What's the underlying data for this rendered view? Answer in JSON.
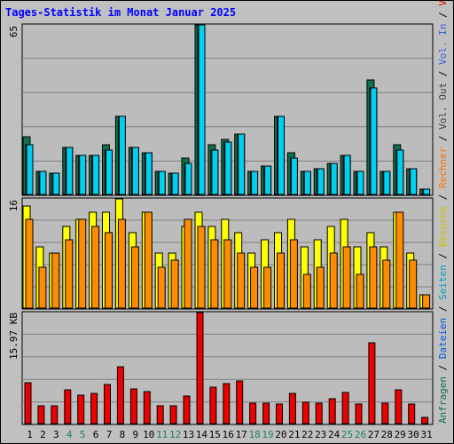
{
  "title": "Tages-Statistik im Monat Januar 2025",
  "colors": {
    "background": "#c0c0c0",
    "plot": "#bcbcbc",
    "grid": "#808080",
    "hits": "#107050",
    "files": "#00c0e0",
    "pages": "#00d0f0",
    "visits": "#ffff00",
    "sites": "#ff8c00",
    "kbytes": "#ee0000",
    "weekday_label": "#000000",
    "weekend_label": "#208060"
  },
  "right_legend": [
    {
      "text": "Anfragen",
      "color": "#107050"
    },
    {
      "text": " / ",
      "color": "#000000"
    },
    {
      "text": "Dateien",
      "color": "#0050e0"
    },
    {
      "text": " / ",
      "color": "#000000"
    },
    {
      "text": "Seiten",
      "color": "#00a0c0"
    },
    {
      "text": " / ",
      "color": "#000000"
    },
    {
      "text": "Besuche",
      "color": "#d0c000"
    },
    {
      "text": " / ",
      "color": "#000000"
    },
    {
      "text": "Rechner",
      "color": "#ff7000"
    },
    {
      "text": " / ",
      "color": "#000000"
    },
    {
      "text": "Vol. Out",
      "color": "#404040"
    },
    {
      "text": " / ",
      "color": "#000000"
    },
    {
      "text": "Vol. In",
      "color": "#3060e0"
    },
    {
      "text": " / ",
      "color": "#000000"
    },
    {
      "text": "Volumen",
      "color": "#ee0000"
    }
  ],
  "chart_data": [
    {
      "type": "bar",
      "panel": "top",
      "max_label": "65",
      "ylim": [
        0,
        65
      ],
      "grid": true,
      "categories": [
        "1",
        "2",
        "3",
        "4",
        "5",
        "6",
        "7",
        "8",
        "9",
        "10",
        "11",
        "12",
        "13",
        "14",
        "15",
        "16",
        "17",
        "18",
        "19",
        "20",
        "21",
        "22",
        "23",
        "24",
        "25",
        "26",
        "27",
        "28",
        "29",
        "30",
        "31"
      ],
      "weekend_days": [
        "4",
        "5",
        "11",
        "12",
        "18",
        "19",
        "25",
        "26"
      ],
      "series": [
        {
          "name": "Anfragen",
          "values": [
            22,
            9,
            8,
            18,
            15,
            15,
            19,
            30,
            18,
            16,
            9,
            8,
            14,
            65,
            19,
            21,
            23,
            9,
            11,
            30,
            16,
            9,
            10,
            12,
            15,
            9,
            44,
            9,
            19,
            10,
            2
          ]
        },
        {
          "name": "Dateien",
          "values": [
            19,
            9,
            8,
            18,
            15,
            15,
            17,
            30,
            18,
            16,
            9,
            8,
            12,
            65,
            17,
            20,
            23,
            9,
            11,
            30,
            14,
            9,
            10,
            12,
            15,
            9,
            41,
            9,
            17,
            10,
            2
          ]
        },
        {
          "name": "Seiten",
          "values": [
            19,
            9,
            8,
            18,
            15,
            15,
            17,
            30,
            18,
            16,
            9,
            8,
            12,
            65,
            17,
            20,
            23,
            9,
            11,
            30,
            14,
            9,
            10,
            12,
            15,
            9,
            41,
            9,
            17,
            10,
            2
          ]
        }
      ]
    },
    {
      "type": "bar",
      "panel": "middle",
      "max_label": "16",
      "ylim": [
        0,
        16
      ],
      "grid": true,
      "categories": [
        "1",
        "2",
        "3",
        "4",
        "5",
        "6",
        "7",
        "8",
        "9",
        "10",
        "11",
        "12",
        "13",
        "14",
        "15",
        "16",
        "17",
        "18",
        "19",
        "20",
        "21",
        "22",
        "23",
        "24",
        "25",
        "26",
        "27",
        "28",
        "29",
        "30",
        "31"
      ],
      "series": [
        {
          "name": "Besuche",
          "values": [
            15,
            9,
            8,
            12,
            13,
            14,
            14,
            16,
            11,
            14,
            8,
            8,
            12,
            14,
            12,
            13,
            11,
            8,
            10,
            11,
            13,
            9,
            10,
            12,
            13,
            9,
            11,
            9,
            14,
            8,
            2
          ]
        },
        {
          "name": "Rechner",
          "values": [
            13,
            6,
            8,
            10,
            13,
            12,
            11,
            13,
            9,
            14,
            6,
            7,
            13,
            12,
            10,
            10,
            8,
            6,
            6,
            8,
            10,
            5,
            6,
            8,
            9,
            5,
            9,
            7,
            14,
            7,
            2
          ]
        }
      ]
    },
    {
      "type": "bar",
      "panel": "bottom",
      "max_label": "15.97 KB",
      "ylim": [
        0,
        15.97
      ],
      "grid": true,
      "categories": [
        "1",
        "2",
        "3",
        "4",
        "5",
        "6",
        "7",
        "8",
        "9",
        "10",
        "11",
        "12",
        "13",
        "14",
        "15",
        "16",
        "17",
        "18",
        "19",
        "20",
        "21",
        "22",
        "23",
        "24",
        "25",
        "26",
        "27",
        "28",
        "29",
        "30",
        "31"
      ],
      "series": [
        {
          "name": "Volumen",
          "values": [
            5.9,
            2.5,
            2.5,
            4.8,
            4.1,
            4.3,
            5.6,
            8.2,
            5.0,
            4.6,
            2.5,
            2.6,
            4.0,
            15.97,
            5.3,
            5.8,
            6.1,
            3.0,
            3.0,
            2.8,
            4.4,
            3.1,
            3.0,
            3.6,
            4.5,
            2.8,
            11.6,
            3.0,
            4.9,
            2.8,
            0.9
          ]
        }
      ]
    }
  ]
}
